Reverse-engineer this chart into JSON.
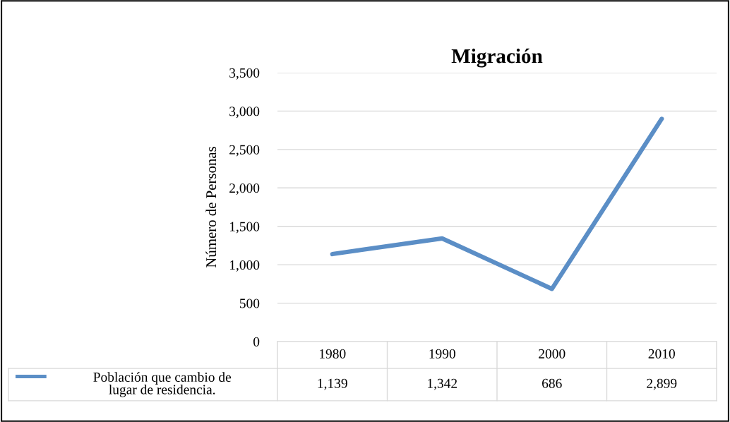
{
  "chart_data": {
    "type": "line",
    "title": "Migración",
    "ylabel": "Número de Personas",
    "categories": [
      "1980",
      "1990",
      "2000",
      "2010"
    ],
    "series": [
      {
        "name": "Población que cambio de\nlugar de residencia.",
        "color": "#5b8ec6",
        "values": [
          1139,
          1342,
          686,
          2899
        ],
        "value_labels": [
          "1,139",
          "1,342",
          "686",
          "2,899"
        ]
      }
    ],
    "ylim": [
      0,
      3500
    ],
    "yticks": [
      {
        "value": 0,
        "label": "0"
      },
      {
        "value": 500,
        "label": "500"
      },
      {
        "value": 1000,
        "label": "1,000"
      },
      {
        "value": 1500,
        "label": "1,500"
      },
      {
        "value": 2000,
        "label": "2,000"
      },
      {
        "value": 2500,
        "label": "2,500"
      },
      {
        "value": 3000,
        "label": "3,000"
      },
      {
        "value": 3500,
        "label": "3,500"
      }
    ],
    "grid": "y",
    "legend": "bottom",
    "marker": "none",
    "line_style": "solid"
  }
}
